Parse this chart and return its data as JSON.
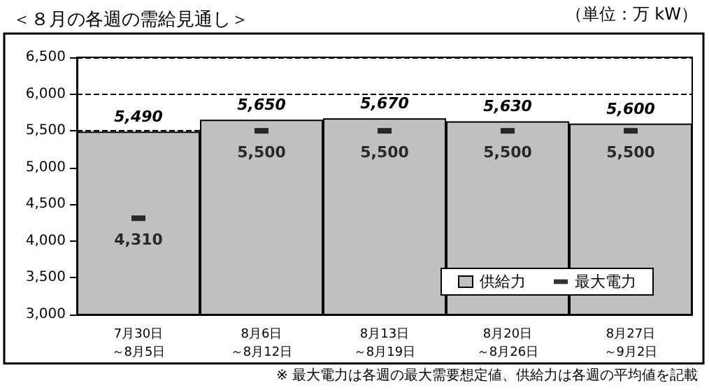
{
  "chart_data": {
    "type": "bar",
    "title": "＜８月の各週の需給見通し＞",
    "categories": [
      "7月30日～8月5日",
      "8月6日～8月12日",
      "8月13日～8月19日",
      "8月20日～8月26日",
      "8月27日～9月2日"
    ],
    "series": [
      {
        "name": "供給力",
        "type": "bar",
        "color": "#c0c0c0",
        "values": [
          5490,
          5650,
          5670,
          5630,
          5600
        ],
        "value_labels": [
          "5,490",
          "5,650",
          "5,670",
          "5,630",
          "5,600"
        ]
      },
      {
        "name": "最大電力",
        "type": "scatter",
        "color": "#000000",
        "values": [
          4310,
          5500,
          5500,
          5500,
          5500
        ],
        "value_labels": [
          "4,310",
          "5,500",
          "5,500",
          "5,500",
          "5,500"
        ]
      }
    ],
    "ylim": [
      3000,
      6500
    ],
    "yticks": [
      {
        "value": 3000,
        "label": "3,000"
      },
      {
        "value": 3500,
        "label": "3,500"
      },
      {
        "value": 4000,
        "label": "4,000"
      },
      {
        "value": 4500,
        "label": "4,500"
      },
      {
        "value": 5000,
        "label": "5,000"
      },
      {
        "value": 5500,
        "label": "5,500"
      },
      {
        "value": 6000,
        "label": "6,000"
      },
      {
        "value": 6500,
        "label": "6,500"
      }
    ],
    "grid": "y",
    "legend": "bottom right",
    "annotations": [
      "（単位：万 kW）",
      "※ 最大電力は各週の最大需要想定値、供給力は各週の平均値を記載"
    ]
  }
}
